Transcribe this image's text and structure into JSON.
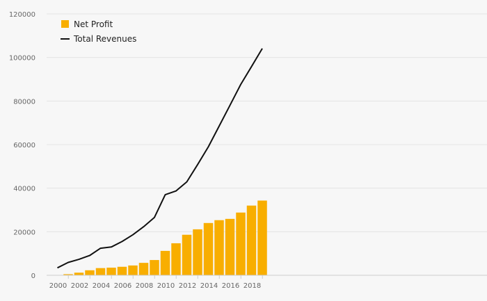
{
  "chart_data": {
    "type": "bar+line",
    "title": "",
    "xlabel": "",
    "ylabel": "",
    "x": [
      2000,
      2001,
      2002,
      2003,
      2004,
      2005,
      2006,
      2007,
      2008,
      2009,
      2010,
      2011,
      2012,
      2013,
      2014,
      2015,
      2016,
      2017,
      2018,
      2019
    ],
    "x_tick_labels": [
      "2000",
      "2002",
      "2004",
      "2006",
      "2008",
      "2010",
      "2012",
      "2014",
      "2016",
      "2018"
    ],
    "ylim": [
      0,
      120000
    ],
    "y_ticks": [
      0,
      20000,
      40000,
      60000,
      80000,
      100000,
      120000
    ],
    "y_tick_labels": [
      "0",
      "20000",
      "40000",
      "60000",
      "80000",
      "100000",
      "120000"
    ],
    "grid": true,
    "legend_position": "top-left",
    "series": [
      {
        "name": "Net Profit",
        "type": "bar",
        "color": "#F8AE00",
        "values": [
          0,
          500,
          1200,
          2300,
          3300,
          3500,
          3900,
          4500,
          5700,
          7000,
          11200,
          14700,
          18600,
          21100,
          24000,
          25300,
          25900,
          28800,
          32000,
          34300
        ]
      },
      {
        "name": "Total Revenues",
        "type": "line",
        "color": "#111111",
        "values": [
          3400,
          5900,
          7300,
          9100,
          12400,
          13000,
          15500,
          18600,
          22300,
          26600,
          37000,
          38700,
          42900,
          50800,
          59000,
          68500,
          78000,
          87600,
          95800,
          104100
        ]
      }
    ]
  },
  "colors": {
    "background": "#f7f7f7",
    "grid": "#e4e4e4",
    "axis": "#cccccc"
  }
}
